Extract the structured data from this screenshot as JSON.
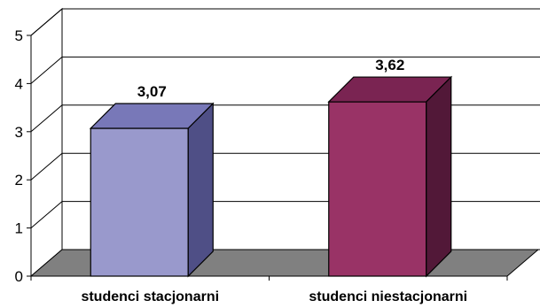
{
  "chart_data": {
    "type": "bar",
    "categories": [
      "studenci stacjonarni",
      "studenci niestacjonarni"
    ],
    "values": [
      3.07,
      3.62
    ],
    "data_labels": [
      "3,07",
      "3,62"
    ],
    "ylim": [
      0,
      5
    ],
    "y_ticks": [
      "0",
      "1",
      "2",
      "3",
      "4",
      "5"
    ],
    "title": "",
    "xlabel": "",
    "ylabel": "",
    "grid": true,
    "legend": "none",
    "projection": "3d",
    "colors": {
      "bar_1_front": "#9999cc",
      "bar_1_top": "#7878b8",
      "bar_1_side": "#4f4f86",
      "bar_2_front": "#993366",
      "bar_2_top": "#7a2452",
      "bar_2_side": "#521838",
      "floor": "#808080",
      "grid": "#000000"
    }
  }
}
